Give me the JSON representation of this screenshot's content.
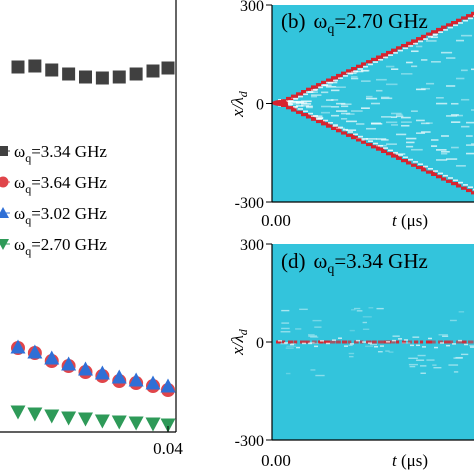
{
  "chart_data": [
    {
      "type": "scatter",
      "panel": "left (cropped)",
      "x_tick_labels": [
        "0.04"
      ],
      "series": [
        {
          "name": "ω_q=3.34 GHz",
          "marker": "square",
          "color": "#404040",
          "points": [
            [
              0.0,
              67
            ],
            [
              0.0045,
              66
            ],
            [
              0.009,
              70
            ],
            [
              0.0135,
              74
            ],
            [
              0.018,
              77
            ],
            [
              0.0225,
              78
            ],
            [
              0.027,
              77
            ],
            [
              0.0315,
              74
            ],
            [
              0.036,
              71
            ],
            [
              0.04,
              68
            ]
          ]
        },
        {
          "name": "ω_q=3.64 GHz",
          "marker": "circle",
          "color": "#e0454a",
          "points": [
            [
              0.0,
              348
            ],
            [
              0.0045,
              353
            ],
            [
              0.009,
              361
            ],
            [
              0.0135,
              366
            ],
            [
              0.018,
              372
            ],
            [
              0.0225,
              376
            ],
            [
              0.027,
              381
            ],
            [
              0.0315,
              383
            ],
            [
              0.036,
              386
            ],
            [
              0.04,
              390
            ]
          ]
        },
        {
          "name": "ω_q=3.02 GHz",
          "marker": "triangle-up",
          "color": "#2f6fd6",
          "points": [
            [
              0.0,
              347
            ],
            [
              0.0045,
              352
            ],
            [
              0.009,
              358
            ],
            [
              0.0135,
              364
            ],
            [
              0.018,
              369
            ],
            [
              0.0225,
              373
            ],
            [
              0.027,
              377
            ],
            [
              0.0315,
              380
            ],
            [
              0.036,
              383
            ],
            [
              0.04,
              386
            ]
          ]
        },
        {
          "name": "ω_q=2.70 GHz",
          "marker": "triangle-down",
          "color": "#2e9a58",
          "points": [
            [
              0.0,
              412
            ],
            [
              0.0045,
              414
            ],
            [
              0.009,
              416
            ],
            [
              0.0135,
              418
            ],
            [
              0.018,
              419
            ],
            [
              0.0225,
              421
            ],
            [
              0.027,
              422
            ],
            [
              0.0315,
              423
            ],
            [
              0.036,
              424
            ],
            [
              0.04,
              425
            ]
          ]
        }
      ],
      "legend": {
        "entries": [
          {
            "prefix": "ω",
            "sub": "q",
            "rest": "=3.34 GHz",
            "marker": "square",
            "color": "#404040"
          },
          {
            "prefix": "ω",
            "sub": "q",
            "rest": "=3.64 GHz",
            "marker": "circle",
            "color": "#e0454a"
          },
          {
            "prefix": "ω",
            "sub": "q",
            "rest": "=3.02 GHz",
            "marker": "triangle-up",
            "color": "#2f6fd6"
          },
          {
            "prefix": "ω",
            "sub": "q",
            "rest": "=2.70 GHz",
            "marker": "triangle-down",
            "color": "#2e9a58"
          }
        ]
      }
    },
    {
      "type": "heatmap",
      "panel_label": "(b)",
      "title_prefix": "ω",
      "title_sub": "q",
      "title_rest": "=2.70 GHz",
      "xlabel_italic": "t",
      "xlabel_unit": " (μs)",
      "ylabel_italic": "x/λ",
      "ylabel_sub": "d",
      "y_ticks": [
        "300",
        "0",
        "-300"
      ],
      "y_tick_values": [
        300,
        0,
        -300
      ],
      "ylim": [
        -300,
        300
      ],
      "x_ticks": [
        "0.00"
      ],
      "background_color": "#33c4dc",
      "pattern": "light-cone",
      "front_velocity_per_unit_t": 1.0
    },
    {
      "type": "heatmap",
      "panel_label": "(d)",
      "title_prefix": "ω",
      "title_sub": "q",
      "title_rest": "=3.34 GHz",
      "xlabel_italic": "t",
      "xlabel_unit": " (μs)",
      "ylabel_italic": "x/λ",
      "ylabel_sub": "d",
      "y_ticks": [
        "300",
        "0",
        "-300"
      ],
      "y_tick_values": [
        300,
        0,
        -300
      ],
      "ylim": [
        -300,
        300
      ],
      "x_ticks": [
        "0.00"
      ],
      "background_color": "#33c4dc",
      "pattern": "localized"
    }
  ]
}
